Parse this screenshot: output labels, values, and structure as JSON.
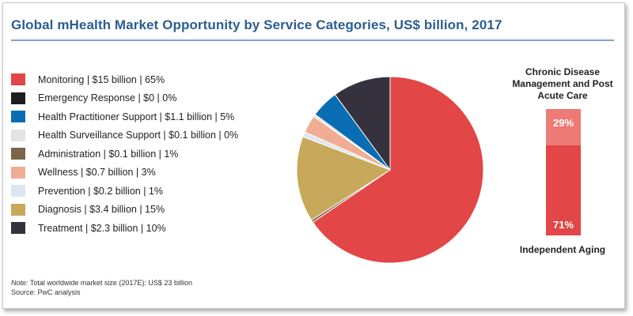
{
  "title": "Global mHealth Market Opportunity by Service Categories, US$ billion, 2017",
  "chart_data": [
    {
      "type": "pie",
      "title": "Global mHealth Market Opportunity by Service Categories, US$ billion, 2017",
      "unit": "US$ billion",
      "slices": [
        {
          "label": "Monitoring | $15 billion | 65%",
          "name": "Monitoring",
          "value": 15,
          "percent": 65,
          "color": "#e24646"
        },
        {
          "label": "Emergency Response | $0 | 0%",
          "name": "Emergency Response",
          "value": 0,
          "percent": 0,
          "color": "#1e1e1e"
        },
        {
          "label": "Health Practitioner Support | $1.1 billion | 5%",
          "name": "Health Practitioner Support",
          "value": 1.1,
          "percent": 5,
          "color": "#0a6db3"
        },
        {
          "label": "Health Surveillance Support | $0.1 billion | 0%",
          "name": "Health Surveillance Support",
          "value": 0.1,
          "percent": 0,
          "color": "#e4e4e4"
        },
        {
          "label": "Administration | $0.1 billion | 1%",
          "name": "Administration",
          "value": 0.1,
          "percent": 1,
          "color": "#7c6548"
        },
        {
          "label": "Wellness | $0.7 billion | 3%",
          "name": "Wellness",
          "value": 0.7,
          "percent": 3,
          "color": "#f0ad93"
        },
        {
          "label": "Prevention | $0.2 billion | 1%",
          "name": "Prevention",
          "value": 0.2,
          "percent": 1,
          "color": "#dce6f3"
        },
        {
          "label": "Diagnosis | $3.4 billion | 15%",
          "name": "Diagnosis",
          "value": 3.4,
          "percent": 15,
          "color": "#c8a85a"
        },
        {
          "label": "Treatment | $2.3 billion | 10%",
          "name": "Treatment",
          "value": 2.3,
          "percent": 10,
          "color": "#35323e"
        }
      ],
      "legend_position": "left"
    },
    {
      "type": "bar",
      "stacked": true,
      "top_label": "Chronic Disease Management and Post Acute Care",
      "bottom_label": "Independent Aging",
      "segments": [
        {
          "name": "Chronic Disease Management and Post Acute Care",
          "percent_label": "29%",
          "value": 29,
          "color": "#ee7a76"
        },
        {
          "name": "Independent Aging",
          "percent_label": "71%",
          "value": 71,
          "color": "#e24646"
        }
      ]
    }
  ],
  "footnote": {
    "note_label": "Note:",
    "note_text": "Total worldwide market size (2017E): US$ 23 billion",
    "source": "Source: PwC analysis"
  }
}
